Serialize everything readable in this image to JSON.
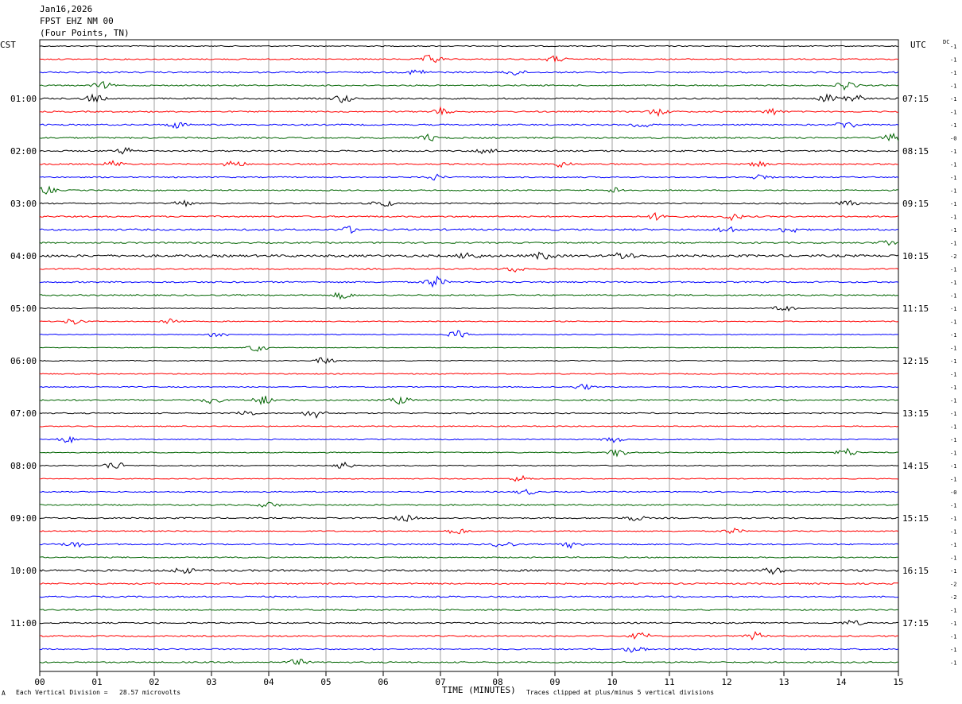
{
  "header": {
    "date": "Jan16,2026",
    "station": "FPST EHZ NM 00",
    "location": "(Four Points, TN)"
  },
  "axes": {
    "left_label": "CST",
    "right_label": "UTC",
    "dc_label": "DC",
    "x_label": "TIME (MINUTES)"
  },
  "footer": {
    "left_mark": "A",
    "scale_note": "Each Vertical Division =   28.57 microvolts",
    "clip_note": "Traces clipped at plus/minus 5 vertical divisions"
  },
  "colors": {
    "trace_cycle": [
      "#000000",
      "#ff0000",
      "#0000ff",
      "#006400"
    ],
    "grid": "#888888",
    "background": "#ffffff"
  },
  "chart_data": {
    "type": "line",
    "title": "FPST EHZ NM 00",
    "xlabel": "TIME (MINUTES)",
    "xlim": [
      0,
      15
    ],
    "x_ticks": [
      "00",
      "01",
      "02",
      "03",
      "04",
      "05",
      "06",
      "07",
      "08",
      "09",
      "10",
      "11",
      "12",
      "13",
      "14",
      "15"
    ],
    "rows_per_hour": 4,
    "row_count": 48,
    "left_time_labels": [
      "01:00",
      "02:00",
      "03:00",
      "04:00",
      "05:00",
      "06:00",
      "07:00",
      "08:00",
      "09:00",
      "10:00",
      "11:00"
    ],
    "left_label_rows": [
      4,
      8,
      12,
      16,
      20,
      24,
      28,
      32,
      36,
      40,
      44
    ],
    "right_time_labels": [
      "07:15",
      "08:15",
      "09:15",
      "10:15",
      "11:15",
      "12:15",
      "13:15",
      "14:15",
      "15:15",
      "16:15",
      "17:15"
    ],
    "right_label_rows": [
      4,
      8,
      12,
      16,
      20,
      24,
      28,
      32,
      36,
      40,
      44
    ],
    "dc_offsets": [
      "-1",
      "-1",
      "-1",
      "-1",
      "-1",
      "-1",
      "-1",
      "-0",
      "-1",
      "-1",
      "-1",
      "-1",
      "-1",
      "-1",
      "-1",
      "-1",
      "-2",
      "-1",
      "-1",
      "-1",
      "-1",
      "-1",
      "-1",
      "-1",
      "-1",
      "-1",
      "-1",
      "-1",
      "-1",
      "-1",
      "-1",
      "-1",
      "-1",
      "-1",
      "-0",
      "-1",
      "-1",
      "-1",
      "-1",
      "-1",
      "-1",
      "-2",
      "-2",
      "-1",
      "-1",
      "-1",
      "-1",
      "-1"
    ],
    "trace_activity": [
      {
        "row": 0,
        "level": 0.7,
        "events": []
      },
      {
        "row": 1,
        "level": 0.8,
        "events": [
          [
            6.85,
            2.5
          ],
          [
            9.0,
            1.6
          ]
        ]
      },
      {
        "row": 2,
        "level": 1.0,
        "events": [
          [
            6.6,
            1.5
          ],
          [
            8.3,
            1.4
          ]
        ]
      },
      {
        "row": 3,
        "level": 0.9,
        "events": [
          [
            1.1,
            1.6
          ],
          [
            14.1,
            2.2
          ]
        ]
      },
      {
        "row": 4,
        "level": 1.0,
        "events": [
          [
            0.95,
            2.0
          ],
          [
            5.3,
            2.0
          ],
          [
            13.8,
            2.2
          ],
          [
            14.2,
            2.6
          ]
        ]
      },
      {
        "row": 5,
        "level": 0.9,
        "events": [
          [
            7.0,
            1.8
          ],
          [
            10.8,
            1.8
          ],
          [
            12.8,
            1.5
          ]
        ]
      },
      {
        "row": 6,
        "level": 1.0,
        "events": [
          [
            2.4,
            1.6
          ],
          [
            10.5,
            1.8
          ],
          [
            14.1,
            2.0
          ]
        ]
      },
      {
        "row": 7,
        "level": 1.0,
        "events": [
          [
            6.8,
            1.6
          ],
          [
            14.9,
            2.2
          ]
        ]
      },
      {
        "row": 8,
        "level": 1.0,
        "events": [
          [
            1.5,
            1.5
          ],
          [
            7.8,
            1.8
          ]
        ]
      },
      {
        "row": 9,
        "level": 0.9,
        "events": [
          [
            1.3,
            1.6
          ],
          [
            3.4,
            2.0
          ],
          [
            9.1,
            1.6
          ],
          [
            12.6,
            1.6
          ]
        ]
      },
      {
        "row": 10,
        "level": 0.8,
        "events": [
          [
            6.9,
            1.4
          ],
          [
            12.6,
            1.4
          ]
        ]
      },
      {
        "row": 11,
        "level": 0.8,
        "events": [
          [
            0.1,
            2.0
          ],
          [
            10.1,
            1.6
          ]
        ]
      },
      {
        "row": 12,
        "level": 0.9,
        "events": [
          [
            2.5,
            1.6
          ],
          [
            6.0,
            1.8
          ],
          [
            14.1,
            1.5
          ]
        ]
      },
      {
        "row": 13,
        "level": 1.0,
        "events": [
          [
            10.8,
            1.8
          ],
          [
            12.1,
            1.6
          ]
        ]
      },
      {
        "row": 14,
        "level": 1.2,
        "events": [
          [
            5.4,
            1.5
          ],
          [
            12.0,
            1.8
          ],
          [
            13.1,
            1.6
          ]
        ]
      },
      {
        "row": 15,
        "level": 1.0,
        "events": [
          [
            14.8,
            1.4
          ]
        ]
      },
      {
        "row": 16,
        "level": 1.6,
        "events": [
          [
            7.5,
            1.8
          ],
          [
            8.8,
            1.8
          ],
          [
            10.2,
            2.0
          ]
        ]
      },
      {
        "row": 17,
        "level": 0.9,
        "events": [
          [
            8.3,
            1.4
          ]
        ]
      },
      {
        "row": 18,
        "level": 1.0,
        "events": [
          [
            6.9,
            3.0
          ]
        ]
      },
      {
        "row": 19,
        "level": 0.9,
        "events": [
          [
            5.3,
            1.8
          ]
        ]
      },
      {
        "row": 20,
        "level": 0.6,
        "events": [
          [
            13.0,
            1.6
          ]
        ]
      },
      {
        "row": 21,
        "level": 0.7,
        "events": [
          [
            0.6,
            1.6
          ],
          [
            2.3,
            1.6
          ]
        ]
      },
      {
        "row": 22,
        "level": 0.6,
        "events": [
          [
            3.1,
            1.6
          ],
          [
            7.3,
            1.8
          ]
        ]
      },
      {
        "row": 23,
        "level": 0.5,
        "events": [
          [
            3.8,
            2.0
          ]
        ]
      },
      {
        "row": 24,
        "level": 0.6,
        "events": [
          [
            5.0,
            2.0
          ]
        ]
      },
      {
        "row": 25,
        "level": 0.7,
        "events": []
      },
      {
        "row": 26,
        "level": 0.7,
        "events": [
          [
            9.5,
            1.4
          ]
        ]
      },
      {
        "row": 27,
        "level": 1.0,
        "events": [
          [
            3.0,
            1.6
          ],
          [
            3.9,
            2.2
          ],
          [
            6.3,
            1.8
          ]
        ]
      },
      {
        "row": 28,
        "level": 0.8,
        "events": [
          [
            4.8,
            2.4
          ],
          [
            3.6,
            1.6
          ]
        ]
      },
      {
        "row": 29,
        "level": 0.7,
        "events": []
      },
      {
        "row": 30,
        "level": 0.7,
        "events": [
          [
            0.5,
            1.6
          ],
          [
            10.0,
            1.6
          ]
        ]
      },
      {
        "row": 31,
        "level": 0.7,
        "events": [
          [
            10.1,
            2.0
          ],
          [
            14.1,
            2.0
          ]
        ]
      },
      {
        "row": 32,
        "level": 0.7,
        "events": [
          [
            1.3,
            2.2
          ],
          [
            5.3,
            1.8
          ]
        ]
      },
      {
        "row": 33,
        "level": 0.6,
        "events": [
          [
            8.4,
            1.6
          ]
        ]
      },
      {
        "row": 34,
        "level": 0.8,
        "events": [
          [
            8.5,
            1.4
          ]
        ]
      },
      {
        "row": 35,
        "level": 0.9,
        "events": [
          [
            4.0,
            1.4
          ]
        ]
      },
      {
        "row": 36,
        "level": 0.9,
        "events": [
          [
            6.4,
            1.6
          ],
          [
            10.4,
            1.4
          ]
        ]
      },
      {
        "row": 37,
        "level": 0.8,
        "events": [
          [
            7.3,
            1.6
          ],
          [
            12.1,
            1.4
          ]
        ]
      },
      {
        "row": 38,
        "level": 0.9,
        "events": [
          [
            0.6,
            1.6
          ],
          [
            8.1,
            1.8
          ],
          [
            9.3,
            1.6
          ]
        ]
      },
      {
        "row": 39,
        "level": 0.8,
        "events": []
      },
      {
        "row": 40,
        "level": 1.4,
        "events": [
          [
            2.5,
            1.6
          ],
          [
            12.8,
            1.6
          ]
        ]
      },
      {
        "row": 41,
        "level": 1.0,
        "events": []
      },
      {
        "row": 42,
        "level": 1.0,
        "events": []
      },
      {
        "row": 43,
        "level": 0.9,
        "events": []
      },
      {
        "row": 44,
        "level": 0.9,
        "events": [
          [
            14.2,
            1.4
          ]
        ]
      },
      {
        "row": 45,
        "level": 0.9,
        "events": [
          [
            10.5,
            1.8
          ],
          [
            12.5,
            1.8
          ]
        ]
      },
      {
        "row": 46,
        "level": 0.9,
        "events": [
          [
            10.4,
            1.8
          ]
        ]
      },
      {
        "row": 47,
        "level": 0.9,
        "events": [
          [
            4.5,
            1.6
          ]
        ]
      }
    ]
  }
}
